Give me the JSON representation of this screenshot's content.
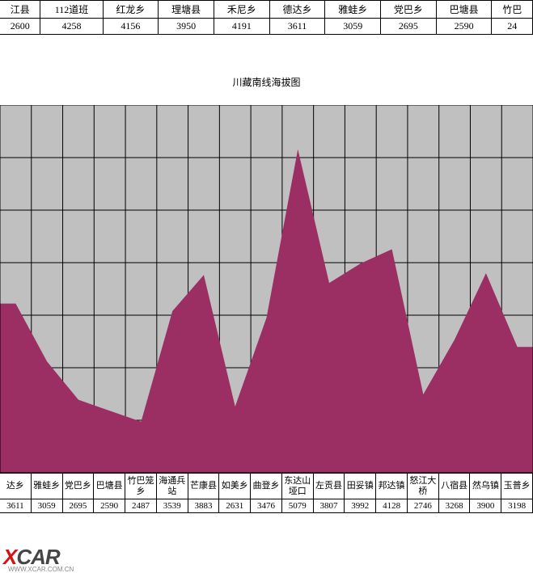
{
  "top_table": {
    "headers": [
      "江县",
      "112道班",
      "红龙乡",
      "理塘县",
      "禾尼乡",
      "德达乡",
      "雅蛙乡",
      "党巴乡",
      "巴塘县",
      "竹巴"
    ],
    "values": [
      "2600",
      "4258",
      "4156",
      "3950",
      "4191",
      "3611",
      "3059",
      "2695",
      "2590",
      "24"
    ]
  },
  "chart": {
    "title": "川藏南线海拔图",
    "type": "area",
    "background_color": "#c0c0c0",
    "fill_color": "#9b2e62",
    "grid_color": "#000000",
    "ylim": [
      2000,
      5500
    ],
    "ytick_step": 500,
    "points": [
      {
        "label": "达乡",
        "value": 3611
      },
      {
        "label": "雅蛙乡",
        "value": 3059
      },
      {
        "label": "党巴乡",
        "value": 2695
      },
      {
        "label": "巴塘县",
        "value": 2590
      },
      {
        "label": "竹巴笼乡",
        "value": 2487
      },
      {
        "label": "海通兵站",
        "value": 3539
      },
      {
        "label": "芒康县",
        "value": 3883
      },
      {
        "label": "如美乡",
        "value": 2631
      },
      {
        "label": "曲登乡",
        "value": 3476
      },
      {
        "label": "东达山垭口",
        "value": 5079
      },
      {
        "label": "左贡县",
        "value": 3807
      },
      {
        "label": "田妥镇",
        "value": 3992
      },
      {
        "label": "邦达镇",
        "value": 4128
      },
      {
        "label": "怒江大桥",
        "value": 2746
      },
      {
        "label": "八宿县",
        "value": 3268
      },
      {
        "label": "然乌镇",
        "value": 3900
      },
      {
        "label": "玉普乡",
        "value": 3198
      }
    ]
  },
  "watermark": {
    "brand_x": "X",
    "brand_rest": "CAR",
    "sub": "WWW.XCAR.COM.CN"
  }
}
